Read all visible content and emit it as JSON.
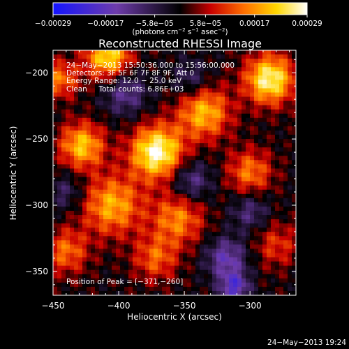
{
  "chart_data": {
    "type": "heatmap",
    "title": "Reconstructed RHESSI Image",
    "xlabel": "Heliocentric X (arcsec)",
    "ylabel": "Heliocentric Y (arcsec)",
    "xlim": [
      -450,
      -265
    ],
    "ylim": [
      -368,
      -183
    ],
    "x_ticks": [
      -450,
      -400,
      -350,
      -300
    ],
    "x_tick_labels": [
      "−450",
      "−400",
      "−350",
      "−300"
    ],
    "y_ticks": [
      -200,
      -250,
      -300,
      -350
    ],
    "y_tick_labels": [
      "−200",
      "−250",
      "−300",
      "−350"
    ],
    "colorbar": {
      "range": [
        -0.00029,
        0.00029
      ],
      "ticks": [
        -0.00029,
        -0.00017,
        -5.8e-05,
        5.8e-05,
        0.00017,
        0.00029
      ],
      "tick_labels": [
        "−0.00029",
        "−0.00017",
        "−5.8e−05",
        "5.8e−05",
        "0.00017",
        "0.00029"
      ],
      "unit_text": "(photons cm",
      "unit_exp1": "−2",
      "unit_mid": " s",
      "unit_exp2": "−1",
      "unit_mid2": " asec",
      "unit_exp3": "−2",
      "unit_end": ")"
    },
    "annotations": [
      "24−May−2013 15:50:36.000 to 15:56:00.000",
      "Detectors: 3F 5F 6F 7F 8F 9F, Att 0",
      "Energy Range: 12.0 − 25.0 keV",
      "Clean     Total counts: 6.86E+03"
    ],
    "peak_label": "Position of Peak = [−371,−260]",
    "peak_position": [
      -371,
      -260
    ],
    "sources": [
      {
        "x": -371,
        "y": -260,
        "amp": 0.00029,
        "sigma": 14
      },
      {
        "x": -285,
        "y": -205,
        "amp": 0.00027,
        "sigma": 13
      },
      {
        "x": -408,
        "y": -188,
        "amp": 0.00024,
        "sigma": 12
      },
      {
        "x": -428,
        "y": -255,
        "amp": 0.00021,
        "sigma": 12
      },
      {
        "x": -335,
        "y": -230,
        "amp": 0.0002,
        "sigma": 14
      },
      {
        "x": -405,
        "y": -300,
        "amp": 0.00019,
        "sigma": 16
      },
      {
        "x": -355,
        "y": -310,
        "amp": 0.00016,
        "sigma": 14
      },
      {
        "x": -300,
        "y": -275,
        "amp": 0.00015,
        "sigma": 12
      },
      {
        "x": -440,
        "y": -335,
        "amp": 0.00014,
        "sigma": 12
      },
      {
        "x": -372,
        "y": -340,
        "amp": 0.00013,
        "sigma": 12
      },
      {
        "x": -280,
        "y": -330,
        "amp": 0.0001,
        "sigma": 12
      },
      {
        "x": -445,
        "y": -205,
        "amp": 0.00015,
        "sigma": 10
      },
      {
        "x": -395,
        "y": -215,
        "amp": -0.00012,
        "sigma": 12
      },
      {
        "x": -345,
        "y": -282,
        "amp": -0.00012,
        "sigma": 11
      },
      {
        "x": -318,
        "y": -340,
        "amp": -0.00015,
        "sigma": 11
      },
      {
        "x": -312,
        "y": -362,
        "amp": -0.00018,
        "sigma": 8
      },
      {
        "x": -300,
        "y": -305,
        "amp": -0.0001,
        "sigma": 10
      },
      {
        "x": -345,
        "y": -205,
        "amp": -9e-05,
        "sigma": 10
      },
      {
        "x": -440,
        "y": -290,
        "amp": -8e-05,
        "sigma": 10
      }
    ]
  },
  "footer": {
    "timestamp": "24−May−2013 19:24"
  }
}
